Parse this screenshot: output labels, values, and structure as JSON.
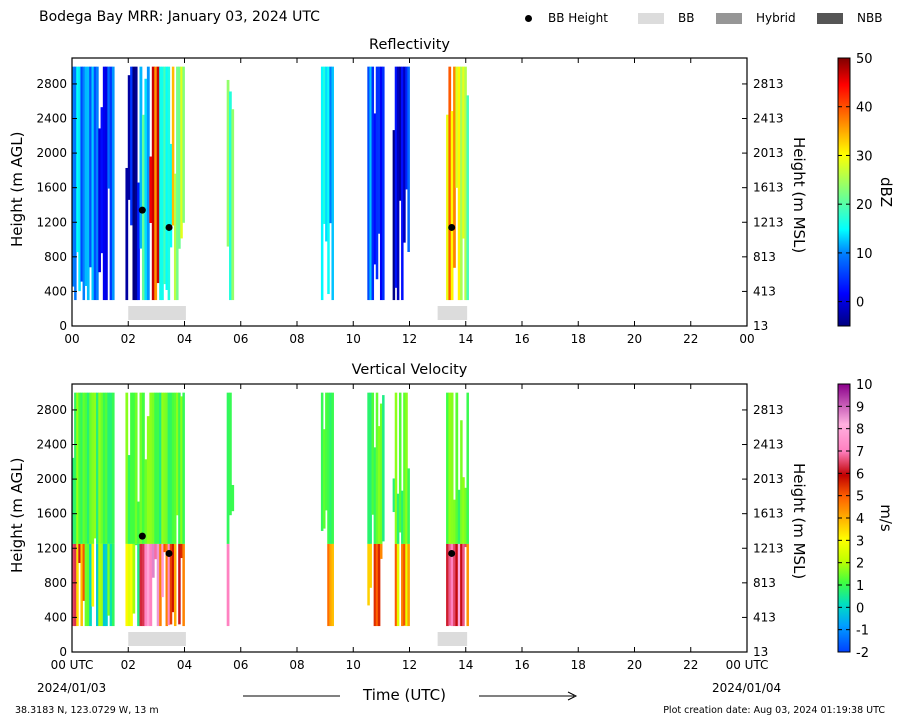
{
  "header": {
    "title": "Bodega Bay MRR:  January 03, 2024 UTC",
    "legend": [
      {
        "label": "BB Height",
        "kind": "dot",
        "color": "#000000"
      },
      {
        "label": "BB",
        "kind": "swatch",
        "color": "#dcdcdc"
      },
      {
        "label": "Hybrid",
        "kind": "swatch",
        "color": "#969696"
      },
      {
        "label": "NBB",
        "kind": "swatch",
        "color": "#555555"
      }
    ]
  },
  "footer": {
    "xlabel": "Time (UTC)",
    "start_date": "2024/01/03",
    "end_date": "2024/01/04",
    "location": "38.3183 N, 123.0729 W, 13 m",
    "creation": "Plot creation date: Aug 03, 2024 01:19:38 UTC"
  },
  "chart_data": [
    {
      "type": "heatmap",
      "title": "Reflectivity",
      "ylabel": "Height (m AGL)",
      "ylabel_right": "Height (m MSL)",
      "colorbar_label": "dBZ",
      "x_ticks": [
        "00",
        "02",
        "04",
        "06",
        "08",
        "10",
        "12",
        "14",
        "16",
        "18",
        "20",
        "22",
        "00"
      ],
      "xlim": [
        0,
        24
      ],
      "ylim": [
        0,
        3100
      ],
      "y_ticks_left": [
        0,
        400,
        800,
        1200,
        1600,
        2000,
        2400,
        2800
      ],
      "y_ticks_right": [
        "13",
        "413",
        "813",
        "1213",
        "1613",
        "2013",
        "2413",
        "2813"
      ],
      "colorbar_ticks": [
        0,
        10,
        20,
        30,
        40,
        50
      ],
      "colorbar_range": [
        -5,
        50
      ],
      "bb_height_points": [
        {
          "x": 2.5,
          "y": 1340
        },
        {
          "x": 3.45,
          "y": 1140
        },
        {
          "x": 13.5,
          "y": 1140
        }
      ],
      "bb_bars": [
        {
          "start": 2.0,
          "end": 4.05,
          "class": "BB"
        },
        {
          "start": 13.0,
          "end": 14.05,
          "class": "BB"
        }
      ],
      "echo_top_m": 3000,
      "echo_bottom_m": 300,
      "precip_segments": [
        {
          "start": 0.0,
          "end": 0.45,
          "value": 10
        },
        {
          "start": 0.45,
          "end": 1.5,
          "value": 6
        },
        {
          "start": 1.9,
          "end": 2.4,
          "value": 0
        },
        {
          "start": 2.4,
          "end": 2.75,
          "value": 14
        },
        {
          "start": 2.75,
          "end": 3.1,
          "value": 42
        },
        {
          "start": 3.1,
          "end": 3.55,
          "value": 22
        },
        {
          "start": 3.55,
          "end": 4.0,
          "value": 28
        },
        {
          "start": 5.5,
          "end": 5.75,
          "value": 18
        },
        {
          "start": 8.85,
          "end": 9.3,
          "value": 10
        },
        {
          "start": 10.5,
          "end": 11.1,
          "value": 6
        },
        {
          "start": 11.4,
          "end": 12.0,
          "value": 2
        },
        {
          "start": 13.3,
          "end": 13.8,
          "value": 33
        },
        {
          "start": 13.8,
          "end": 14.1,
          "value": 24
        }
      ]
    },
    {
      "type": "heatmap",
      "title": "Vertical Velocity",
      "ylabel": "Height (m AGL)",
      "ylabel_right": "Height (m MSL)",
      "colorbar_label": "m/s",
      "x_ticks": [
        "00 UTC",
        "02",
        "04",
        "06",
        "08",
        "10",
        "12",
        "14",
        "16",
        "18",
        "20",
        "22",
        "00 UTC"
      ],
      "xlim": [
        0,
        24
      ],
      "ylim": [
        0,
        3100
      ],
      "y_ticks_left": [
        0,
        400,
        800,
        1200,
        1600,
        2000,
        2400,
        2800
      ],
      "y_ticks_right": [
        "13",
        "413",
        "813",
        "1213",
        "1613",
        "2013",
        "2413",
        "2813"
      ],
      "colorbar_ticks": [
        -2,
        -1,
        0,
        1,
        2,
        3,
        4,
        5,
        6,
        7,
        8,
        9,
        10
      ],
      "colorbar_range": [
        -2,
        10
      ],
      "bb_height_points": [
        {
          "x": 2.5,
          "y": 1340
        },
        {
          "x": 3.45,
          "y": 1140
        },
        {
          "x": 13.5,
          "y": 1140
        }
      ],
      "bb_bars": [
        {
          "start": 2.0,
          "end": 4.05,
          "class": "BB"
        },
        {
          "start": 13.0,
          "end": 14.05,
          "class": "BB"
        }
      ],
      "echo_top_m": 3000,
      "echo_bottom_m": 300,
      "precip_segments": [
        {
          "start": 0.0,
          "end": 0.45,
          "value": 5
        },
        {
          "start": 0.45,
          "end": 1.5,
          "value": 1.5
        },
        {
          "start": 1.9,
          "end": 2.4,
          "value": 2
        },
        {
          "start": 2.4,
          "end": 2.75,
          "value": 7
        },
        {
          "start": 2.75,
          "end": 3.1,
          "value": 8
        },
        {
          "start": 3.1,
          "end": 3.55,
          "value": 6
        },
        {
          "start": 3.55,
          "end": 4.0,
          "value": 5.5
        },
        {
          "start": 5.5,
          "end": 5.75,
          "value": 6
        },
        {
          "start": 8.85,
          "end": 9.3,
          "value": 5
        },
        {
          "start": 10.5,
          "end": 11.1,
          "value": 5
        },
        {
          "start": 11.4,
          "end": 12.0,
          "value": 4
        },
        {
          "start": 13.3,
          "end": 13.8,
          "value": 7.5
        },
        {
          "start": 13.8,
          "end": 14.1,
          "value": 6
        }
      ]
    }
  ]
}
